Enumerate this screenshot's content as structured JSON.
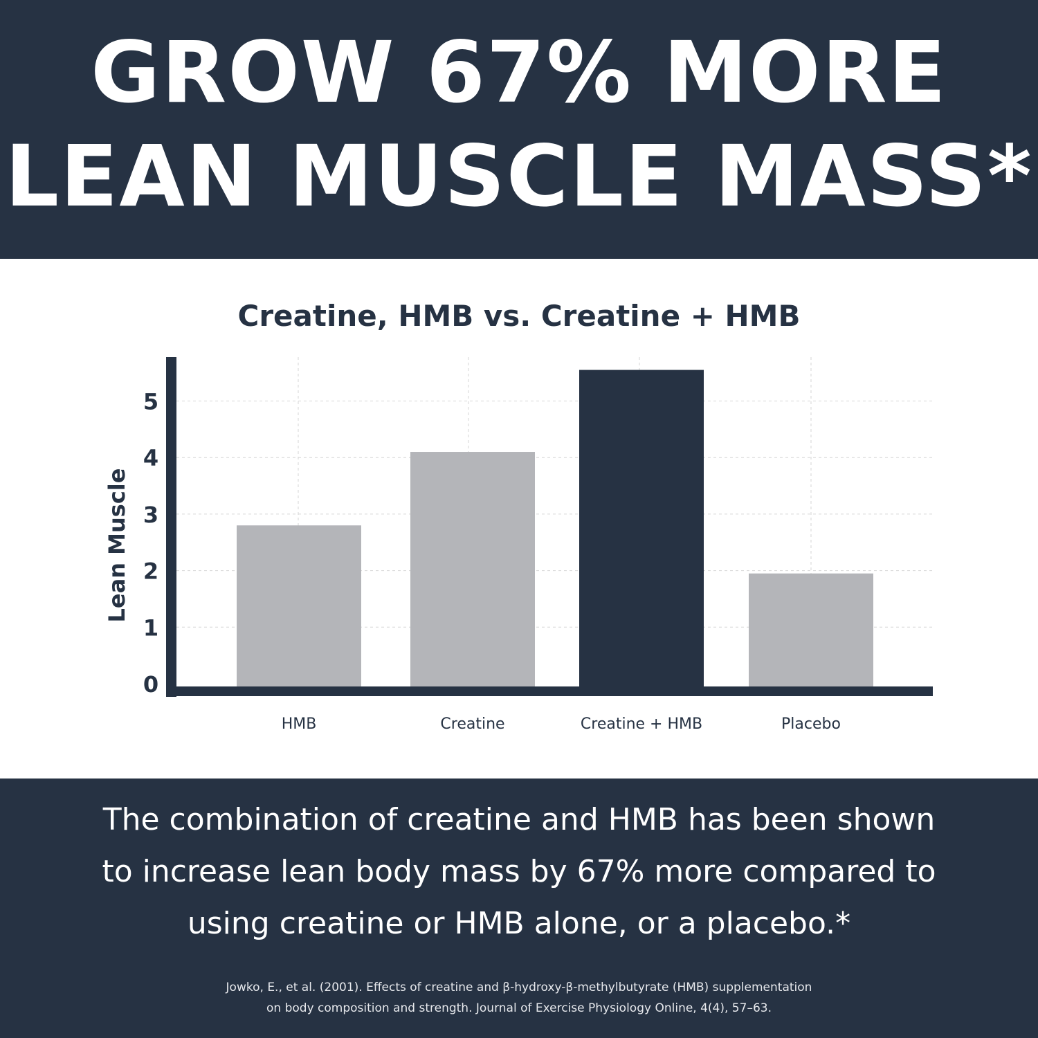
{
  "colors": {
    "banner": "#263243",
    "bar_gray": "#b4b5b9",
    "bar_highlight": "#263243",
    "grid": "#d6d6d6",
    "text_dark": "#263243",
    "white": "#ffffff"
  },
  "headline": {
    "line1": "GROW 67% MORE",
    "line2": "LEAN MUSCLE MASS*"
  },
  "chart_data": {
    "type": "bar",
    "title": "Creatine, HMB vs. Creatine + HMB",
    "xlabel": "",
    "ylabel": "Lean Muscle",
    "categories": [
      "HMB",
      "Creatine",
      "Creatine + HMB",
      "Placebo"
    ],
    "values": [
      2.8,
      4.1,
      5.55,
      1.95
    ],
    "highlight_index": 2,
    "yticks": [
      "0",
      "1",
      "2",
      "3",
      "4",
      "5"
    ],
    "ylim": [
      0,
      5.9
    ],
    "grid": true
  },
  "description": {
    "line1": "The combination of creatine and HMB has been shown",
    "line2": "to increase lean body mass by 67% more compared to",
    "line3": "using creatine or HMB alone, or a placebo.*"
  },
  "citation": {
    "line1": "Jowko, E., et al. (2001). Effects of creatine and β-hydroxy-β-methylbutyrate (HMB) supplementation",
    "line2": "on body composition and strength. Journal of Exercise Physiology Online, 4(4), 57–63."
  }
}
